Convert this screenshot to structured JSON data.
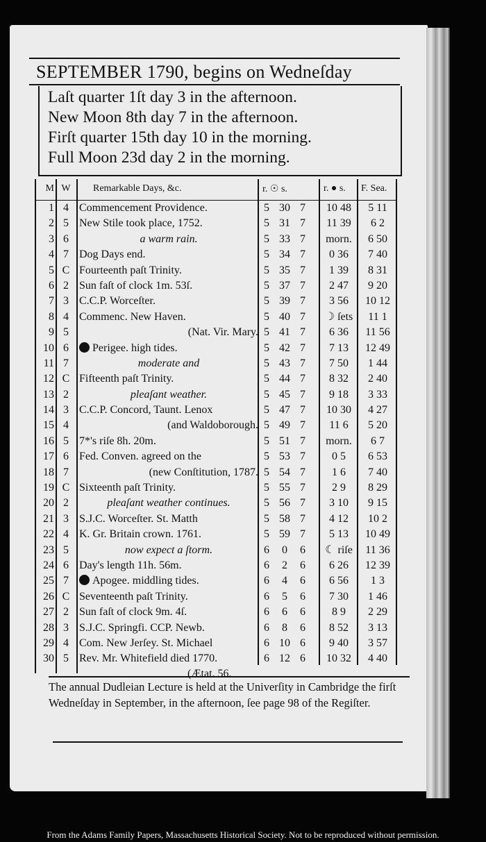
{
  "header": {
    "title": "SEPTEMBER 1790, begins on Wedneſday"
  },
  "phases": [
    "Laſt quarter 1ſt day  3 in the afternoon.",
    "New Moon 8th day  7 in the afternoon.",
    "Firſt quarter 15th day 10 in the morning.",
    "Full Moon 23d day  2 in the morning."
  ],
  "columns": {
    "m": "M",
    "w": "W",
    "remarks": "Remarkable Days, &c.",
    "sun": "r. ☉ s.",
    "moon": "r. ● s.",
    "sea": "F. Sea."
  },
  "rows": [
    [
      "1",
      "4",
      "Commencement Providence.",
      "5",
      "30",
      "7",
      "10 48",
      "5 11"
    ],
    [
      "2",
      "5",
      "New Stile took place, 1752.",
      "5",
      "31",
      "7",
      "11 39",
      "6 2"
    ],
    [
      "3",
      "6",
      "a warm rain.",
      "5",
      "33",
      "7",
      "morn.",
      "6 50"
    ],
    [
      "4",
      "7",
      "Dog Days end.",
      "5",
      "34",
      "7",
      "0 36",
      "7 40"
    ],
    [
      "5",
      "C",
      "Fourteenth paſt Trinity.",
      "5",
      "35",
      "7",
      "1 39",
      "8 31"
    ],
    [
      "6",
      "2",
      "Sun faſt of clock 1m. 53ſ.",
      "5",
      "37",
      "7",
      "2 47",
      "9 20"
    ],
    [
      "7",
      "3",
      "C.C.P. Worceſter.",
      "5",
      "39",
      "7",
      "3 56",
      "10 12"
    ],
    [
      "8",
      "4",
      "Commenc. New Haven.",
      "5",
      "40",
      "7",
      "☽ ſets",
      "11 1"
    ],
    [
      "9",
      "5",
      "(Nat. Vir. Mary.",
      "5",
      "41",
      "7",
      "6 36",
      "11 56"
    ],
    [
      "10",
      "6",
      "Perigee.    high tides.",
      "5",
      "42",
      "7",
      "7 13",
      "12 49"
    ],
    [
      "11",
      "7",
      "moderate and",
      "5",
      "43",
      "7",
      "7 50",
      "1 44"
    ],
    [
      "12",
      "C",
      "Fifteenth paſt Trinity.",
      "5",
      "44",
      "7",
      "8 32",
      "2 40"
    ],
    [
      "13",
      "2",
      "pleaſant weather.",
      "5",
      "45",
      "7",
      "9 18",
      "3 33"
    ],
    [
      "14",
      "3",
      "C.C.P. Concord, Taunt. Lenox",
      "5",
      "47",
      "7",
      "10 30",
      "4 27"
    ],
    [
      "15",
      "4",
      "(and Waldoborough.",
      "5",
      "49",
      "7",
      "11 6",
      "5 20"
    ],
    [
      "16",
      "5",
      "7*'s riſe 8h. 20m.",
      "5",
      "51",
      "7",
      "morn.",
      "6 7"
    ],
    [
      "17",
      "6",
      "Fed. Conven. agreed on the",
      "5",
      "53",
      "7",
      "0 5",
      "6 53"
    ],
    [
      "18",
      "7",
      "(new Conſtitution, 1787.",
      "5",
      "54",
      "7",
      "1 6",
      "7 40"
    ],
    [
      "19",
      "C",
      "Sixteenth paſt Trinity.",
      "5",
      "55",
      "7",
      "2 9",
      "8 29"
    ],
    [
      "20",
      "2",
      "pleaſant weather continues.",
      "5",
      "56",
      "7",
      "3 10",
      "9 15"
    ],
    [
      "21",
      "3",
      "S.J.C. Worceſter. St. Matth",
      "5",
      "58",
      "7",
      "4 12",
      "10 2"
    ],
    [
      "22",
      "4",
      "K. Gr. Britain crown. 1761.",
      "5",
      "59",
      "7",
      "5 13",
      "10 49"
    ],
    [
      "23",
      "5",
      "now expect a ſtorm.",
      "6",
      "0",
      "6",
      "☾ riſe",
      "11 36"
    ],
    [
      "24",
      "6",
      "Day's length 11h. 56m.",
      "6",
      "2",
      "6",
      "6 26",
      "12 39"
    ],
    [
      "25",
      "7",
      "Apogee. middling tides.",
      "6",
      "4",
      "6",
      "6 56",
      "1 3"
    ],
    [
      "26",
      "C",
      "Seventeenth paſt Trinity.",
      "6",
      "5",
      "6",
      "7 30",
      "1 46"
    ],
    [
      "27",
      "2",
      "Sun faſt of clock 9m. 4ſ.",
      "6",
      "6",
      "6",
      "8 9",
      "2 29"
    ],
    [
      "28",
      "3",
      "S.J.C. Springfi. CCP. Newb.",
      "6",
      "8",
      "6",
      "8 52",
      "3 13"
    ],
    [
      "29",
      "4",
      "Com. New Jerſey. St. Michael",
      "6",
      "10",
      "6",
      "9 40",
      "3 57"
    ],
    [
      "30",
      "5",
      "Rev. Mr. Whitefield died 1770.",
      "6",
      "12",
      "6",
      "10 32",
      "4 40"
    ]
  ],
  "etat": "(Ætat. 56.",
  "note": "The annual Dudleian Lecture is held at the Univerſity in Cambridge the firſt Wedneſday in September, in the afternoon, ſee page 98 of the Regiſter.",
  "credit": "From the Adams Family Papers, Massachusetts Historical Society. Not to be reproduced without permission."
}
